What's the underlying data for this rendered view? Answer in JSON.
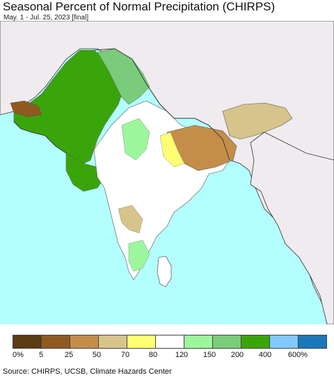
{
  "title": "Seasonal Percent of Normal Precipitation (CHIRPS)",
  "subtitle": "May. 1 - Jul. 25, 2023 [final]",
  "source": "Source: CHIRPS, UCSB, Climate Hazards Center",
  "legend": {
    "colors": [
      "#5a3b12",
      "#8f5a1f",
      "#c48e4a",
      "#d7c48a",
      "#ffff73",
      "#ffffff",
      "#9cf79c",
      "#7acc7a",
      "#3aa50a",
      "#80c8ff",
      "#1a78b8"
    ],
    "ticks": [
      "0%",
      "5",
      "25",
      "50",
      "70",
      "80",
      "120",
      "150",
      "200",
      "400",
      "600%"
    ]
  },
  "map_colors": {
    "ocean": "#b3ffff",
    "outside_land": "#f0ebef",
    "border": "#333333",
    "internal_border": "#666666"
  }
}
